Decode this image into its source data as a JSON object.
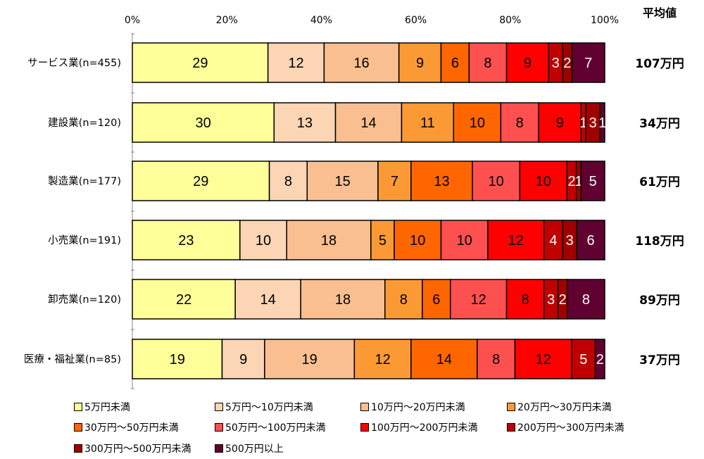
{
  "chart_data": {
    "type": "bar",
    "orientation": "horizontal",
    "stacked": true,
    "percent": true,
    "xlim": [
      0,
      100
    ],
    "x_ticks": [
      "0%",
      "20%",
      "40%",
      "60%",
      "80%",
      "100%"
    ],
    "grid": false,
    "legend_position": "bottom",
    "categories": [
      "サービス業(n=455)",
      "建設業(n=120)",
      "製造業(n=177)",
      "小売業(n=191)",
      "卸売業(n=120)",
      "医療・福祉業(n=85)"
    ],
    "series": [
      {
        "name": "5万円未満",
        "color": "#ffff99",
        "values": [
          29,
          30,
          29,
          23,
          22,
          19
        ]
      },
      {
        "name": "5万円～10万円未満",
        "color": "#fcd5b5",
        "values": [
          12,
          13,
          8,
          10,
          14,
          9
        ]
      },
      {
        "name": "10万円～20万円未満",
        "color": "#f9bf90",
        "values": [
          16,
          14,
          15,
          18,
          18,
          19
        ]
      },
      {
        "name": "20万円～30万円未満",
        "color": "#fb9a35",
        "values": [
          9,
          11,
          7,
          5,
          8,
          12
        ]
      },
      {
        "name": "30万円～50万円未満",
        "color": "#ff6600",
        "values": [
          6,
          10,
          13,
          10,
          6,
          14
        ]
      },
      {
        "name": "50万円～100万円未満",
        "color": "#ff5050",
        "values": [
          8,
          8,
          10,
          10,
          12,
          8
        ]
      },
      {
        "name": "100万円～200万円未満",
        "color": "#ff0000",
        "values": [
          9,
          9,
          10,
          12,
          8,
          12
        ]
      },
      {
        "name": "200万円～300万円未満",
        "color": "#c00000",
        "values": [
          3,
          1,
          2,
          4,
          3,
          5
        ]
      },
      {
        "name": "300万円～500万円未満",
        "color": "#a00000",
        "values": [
          2,
          3,
          1,
          3,
          2,
          0
        ]
      },
      {
        "name": "500万円以上",
        "color": "#600030",
        "values": [
          7,
          1,
          5,
          6,
          8,
          2
        ]
      }
    ],
    "side_header": "平均値",
    "side_values": [
      "107万円",
      "34万円",
      "61万円",
      "118万円",
      "89万円",
      "37万円"
    ]
  }
}
